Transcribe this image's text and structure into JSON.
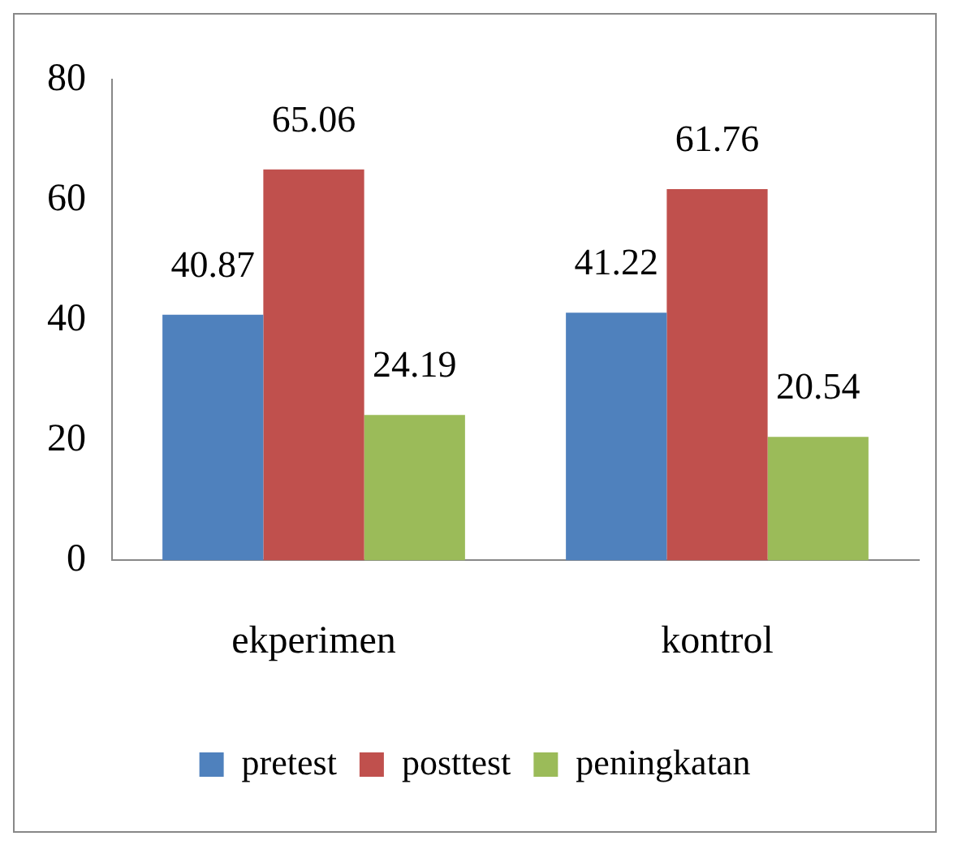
{
  "chart_data": {
    "type": "bar",
    "categories": [
      "ekperimen",
      "kontrol"
    ],
    "series": [
      {
        "name": "pretest",
        "color": "#4f81bd",
        "values": [
          40.87,
          41.22
        ]
      },
      {
        "name": "posttest",
        "color": "#c0504d",
        "values": [
          65.06,
          61.76
        ]
      },
      {
        "name": "peningkatan",
        "color": "#9bbb59",
        "values": [
          24.19,
          20.54
        ]
      }
    ],
    "ylim": [
      0,
      80
    ],
    "yticks": [
      0,
      20,
      40,
      60,
      80
    ],
    "grid": false,
    "legend": "bottom",
    "data_labels": true
  }
}
